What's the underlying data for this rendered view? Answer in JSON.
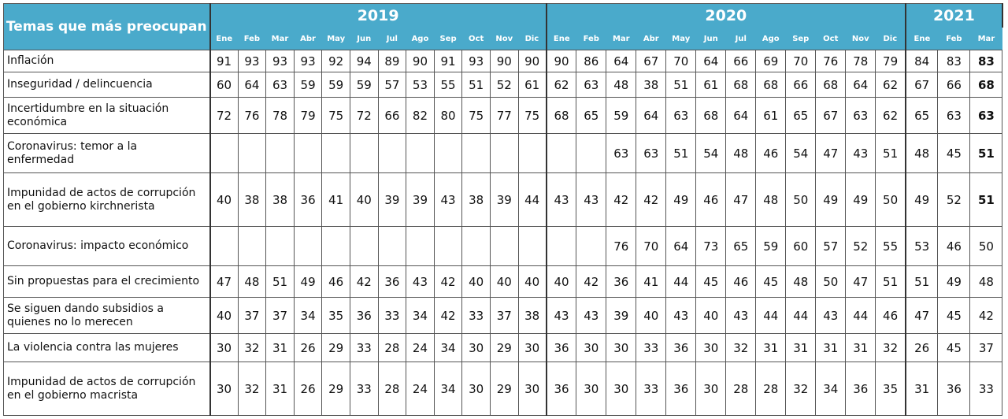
{
  "header": {
    "title": "Temas que más preocupan",
    "years": [
      {
        "label": "2019",
        "months": [
          "Ene",
          "Feb",
          "Mar",
          "Abr",
          "May",
          "Jun",
          "Jul",
          "Ago",
          "Sep",
          "Oct",
          "Nov",
          "Dic"
        ]
      },
      {
        "label": "2020",
        "months": [
          "Ene",
          "Feb",
          "Mar",
          "Abr",
          "May",
          "Jun",
          "Jul",
          "Ago",
          "Sep",
          "Oct",
          "Nov",
          "Dic"
        ]
      },
      {
        "label": "2021",
        "months": [
          "Ene",
          "Feb",
          "Mar"
        ]
      }
    ]
  },
  "table": {
    "rows": [
      {
        "label": "Inflación",
        "bold_last": true,
        "values": [
          91,
          93,
          93,
          93,
          92,
          94,
          89,
          90,
          91,
          93,
          90,
          90,
          90,
          86,
          64,
          67,
          70,
          64,
          66,
          69,
          70,
          76,
          78,
          79,
          84,
          83,
          83
        ]
      },
      {
        "label": "Inseguridad / delincuencia",
        "bold_last": true,
        "values": [
          60,
          64,
          63,
          59,
          59,
          59,
          57,
          53,
          55,
          51,
          52,
          61,
          62,
          63,
          48,
          38,
          51,
          61,
          68,
          68,
          66,
          68,
          64,
          62,
          67,
          66,
          68
        ]
      },
      {
        "label": "Incertidumbre en la situación económica",
        "bold_last": true,
        "values": [
          72,
          76,
          78,
          79,
          75,
          72,
          66,
          82,
          80,
          75,
          77,
          75,
          68,
          65,
          59,
          64,
          63,
          68,
          64,
          61,
          65,
          67,
          63,
          62,
          65,
          63,
          63
        ]
      },
      {
        "label": "Coronavirus: temor a la enfermedad",
        "bold_last": true,
        "values": [
          null,
          null,
          null,
          null,
          null,
          null,
          null,
          null,
          null,
          null,
          null,
          null,
          null,
          null,
          63,
          63,
          51,
          54,
          48,
          46,
          54,
          47,
          43,
          51,
          48,
          45,
          51
        ]
      },
      {
        "label": "Impunidad de actos de corrupción en el gobierno kirchnerista",
        "bold_last": true,
        "values": [
          40,
          38,
          38,
          36,
          41,
          40,
          39,
          39,
          43,
          38,
          39,
          44,
          43,
          43,
          42,
          42,
          49,
          46,
          47,
          48,
          50,
          49,
          49,
          50,
          49,
          52,
          51
        ]
      },
      {
        "label": "Coronavirus: impacto económico",
        "values": [
          null,
          null,
          null,
          null,
          null,
          null,
          null,
          null,
          null,
          null,
          null,
          null,
          null,
          null,
          76,
          70,
          64,
          73,
          65,
          59,
          60,
          57,
          52,
          55,
          53,
          46,
          50
        ]
      },
      {
        "label": "Sin propuestas para el crecimiento",
        "values": [
          47,
          48,
          51,
          49,
          46,
          42,
          36,
          43,
          42,
          40,
          40,
          40,
          40,
          42,
          36,
          41,
          44,
          45,
          46,
          45,
          48,
          50,
          47,
          51,
          51,
          49,
          48
        ]
      },
      {
        "label": "Se siguen dando subsidios a quienes no lo merecen",
        "values": [
          40,
          37,
          37,
          34,
          35,
          36,
          33,
          34,
          42,
          33,
          37,
          38,
          43,
          43,
          39,
          40,
          43,
          40,
          43,
          44,
          44,
          43,
          44,
          46,
          47,
          45,
          42
        ]
      },
      {
        "label": "La violencia contra las mujeres",
        "values": [
          30,
          32,
          31,
          26,
          29,
          33,
          28,
          24,
          34,
          30,
          29,
          30,
          36,
          30,
          30,
          33,
          36,
          30,
          32,
          31,
          31,
          31,
          31,
          32,
          26,
          45,
          37
        ]
      },
      {
        "label": "Impunidad de actos de corrupción en el gobierno macrista",
        "values": [
          30,
          32,
          31,
          26,
          29,
          33,
          28,
          24,
          34,
          30,
          29,
          30,
          36,
          30,
          30,
          33,
          36,
          30,
          28,
          28,
          32,
          34,
          36,
          35,
          31,
          36,
          33
        ]
      }
    ]
  }
}
